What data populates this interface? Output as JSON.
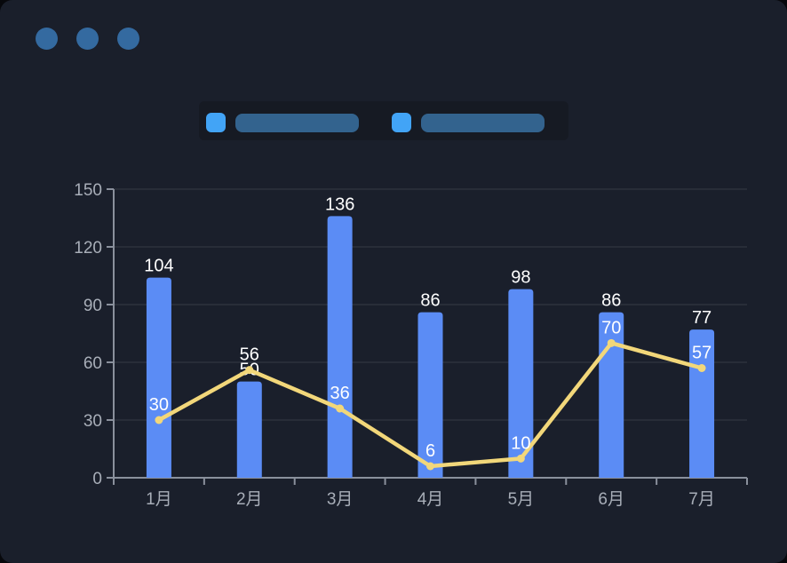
{
  "window": {
    "dots": [
      {
        "color": "#346AA0"
      },
      {
        "color": "#346AA0"
      },
      {
        "color": "#346AA0"
      }
    ],
    "background": "#1A1F2B"
  },
  "legend": {
    "items": [
      {
        "swatch_color": "#42A4F6",
        "pill_color": "#33638E"
      },
      {
        "swatch_color": "#42A4F6",
        "pill_color": "#33638E"
      }
    ]
  },
  "chart_data": {
    "type": "bar",
    "subtype": "bar-line-combo",
    "categories": [
      "1月",
      "2月",
      "3月",
      "4月",
      "5月",
      "6月",
      "7月"
    ],
    "series": [
      {
        "name": "bar-series",
        "type": "bar",
        "color": "#5B8CF5",
        "values": [
          104,
          50,
          136,
          86,
          98,
          86,
          77
        ],
        "label_color": "#FFFFFF"
      },
      {
        "name": "line-series",
        "type": "line",
        "color": "#F2D77A",
        "values": [
          30,
          56,
          36,
          6,
          10,
          70,
          57
        ],
        "label_color": "#FFFFFF"
      }
    ],
    "title": "",
    "xlabel": "",
    "ylabel": "",
    "ylim": [
      0,
      150
    ],
    "yticks": [
      0,
      30,
      60,
      90,
      120,
      150
    ],
    "grid": "horizontal-only",
    "legend_position": "top",
    "axis_color": "#8A909C",
    "grid_color": "#373B46",
    "tick_label_color": "#A8AEB8"
  }
}
